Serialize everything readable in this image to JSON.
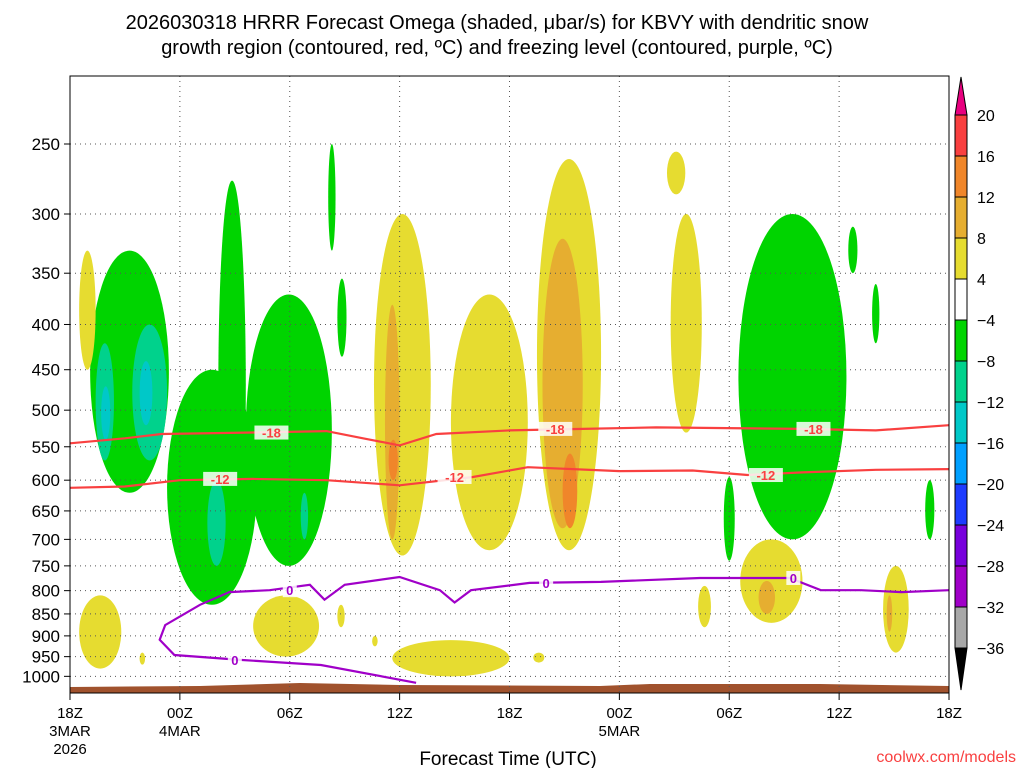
{
  "chart_data": {
    "type": "heatmap",
    "title_line1": "2026030318 HRRR Forecast Omega (shaded, μbar/s) for KBVY with dendritic snow",
    "title_line2": "growth region (contoured, red, ºC) and freezing level (contoured, purple, ºC)",
    "xlabel": "Forecast Time (UTC)",
    "ylabel": "",
    "credit": "coolwx.com/models",
    "xlim_hours": [
      0,
      48
    ],
    "ylim_hpa": [
      1042,
      209
    ],
    "yscale": "log",
    "grid": true,
    "x_ticks": [
      {
        "h": 0,
        "l1": "18Z",
        "l2": "3MAR",
        "l3": "2026"
      },
      {
        "h": 6,
        "l1": "00Z",
        "l2": "4MAR",
        "l3": ""
      },
      {
        "h": 12,
        "l1": "06Z",
        "l2": "",
        "l3": ""
      },
      {
        "h": 18,
        "l1": "12Z",
        "l2": "",
        "l3": ""
      },
      {
        "h": 24,
        "l1": "18Z",
        "l2": "",
        "l3": ""
      },
      {
        "h": 30,
        "l1": "00Z",
        "l2": "5MAR",
        "l3": ""
      },
      {
        "h": 36,
        "l1": "06Z",
        "l2": "",
        "l3": ""
      },
      {
        "h": 42,
        "l1": "12Z",
        "l2": "",
        "l3": ""
      },
      {
        "h": 48,
        "l1": "18Z",
        "l2": "",
        "l3": ""
      }
    ],
    "y_ticks": [
      "250",
      "300",
      "350",
      "400",
      "450",
      "500",
      "550",
      "600",
      "650",
      "700",
      "750",
      "800",
      "850",
      "900",
      "950",
      "1000"
    ],
    "colorbar": {
      "labels": [
        "20",
        "16",
        "12",
        "8",
        "4",
        "-4",
        "-8",
        "-12",
        "-16",
        "-20",
        "-24",
        "-28",
        "-32",
        "-36"
      ],
      "top_arrow_color": "#e8007f",
      "bottom_arrow_color": "#000000",
      "colors": [
        "#f94040",
        "#f0862a",
        "#e6ae30",
        "#e6dc30",
        "#ffffff",
        "#00d400",
        "#00d28c",
        "#00c8c8",
        "#00a0ff",
        "#1e3cff",
        "#7800dc",
        "#a000c8",
        "#a8a8a8"
      ]
    },
    "level_colors": {
      "-12": "#00c8c8",
      "-8": "#00d28c",
      "-4": "#00d400",
      "4": "#e6dc30",
      "8": "#e6ae30",
      "12": "#f0862a"
    },
    "shaded_regions": [
      {
        "level": "-4",
        "h": [
          1.1,
          5.4
        ],
        "p": [
          330,
          620
        ]
      },
      {
        "level": "-4",
        "h": [
          5.3,
          10.2
        ],
        "p": [
          450,
          830
        ]
      },
      {
        "level": "-4",
        "h": [
          8.1,
          9.6
        ],
        "p": [
          275,
          800
        ]
      },
      {
        "level": "-4",
        "h": [
          9.6,
          14.3
        ],
        "p": [
          370,
          750
        ]
      },
      {
        "level": "-4",
        "h": [
          14.1,
          14.5
        ],
        "p": [
          250,
          330
        ]
      },
      {
        "level": "-4",
        "h": [
          14.6,
          15.1
        ],
        "p": [
          355,
          435
        ]
      },
      {
        "level": "-4",
        "h": [
          36.5,
          42.4
        ],
        "p": [
          300,
          700
        ]
      },
      {
        "level": "-4",
        "h": [
          35.7,
          36.3
        ],
        "p": [
          595,
          740
        ]
      },
      {
        "level": "-4",
        "h": [
          42.5,
          43.0
        ],
        "p": [
          310,
          350
        ]
      },
      {
        "level": "-4",
        "h": [
          43.8,
          44.2
        ],
        "p": [
          360,
          420
        ]
      },
      {
        "level": "-4",
        "h": [
          46.7,
          47.2
        ],
        "p": [
          600,
          700
        ]
      },
      {
        "level": "-8",
        "h": [
          1.4,
          2.4
        ],
        "p": [
          420,
          570
        ]
      },
      {
        "level": "-8",
        "h": [
          3.4,
          5.3
        ],
        "p": [
          400,
          570
        ]
      },
      {
        "level": "-8",
        "h": [
          7.5,
          8.5
        ],
        "p": [
          600,
          750
        ]
      },
      {
        "level": "-8",
        "h": [
          12.6,
          13.0
        ],
        "p": [
          620,
          700
        ]
      },
      {
        "level": "-12",
        "h": [
          1.7,
          2.2
        ],
        "p": [
          470,
          540
        ]
      },
      {
        "level": "-12",
        "h": [
          3.8,
          4.5
        ],
        "p": [
          440,
          520
        ]
      },
      {
        "level": "4",
        "h": [
          0.5,
          1.4
        ],
        "p": [
          330,
          450
        ]
      },
      {
        "level": "4",
        "h": [
          0.5,
          2.8
        ],
        "p": [
          810,
          980
        ]
      },
      {
        "level": "4",
        "h": [
          3.8,
          4.1
        ],
        "p": [
          940,
          970
        ]
      },
      {
        "level": "4",
        "h": [
          10.0,
          13.6
        ],
        "p": [
          810,
          950
        ]
      },
      {
        "level": "4",
        "h": [
          14.6,
          15.0
        ],
        "p": [
          830,
          880
        ]
      },
      {
        "level": "4",
        "h": [
          16.5,
          16.8
        ],
        "p": [
          900,
          925
        ]
      },
      {
        "level": "4",
        "h": [
          16.6,
          19.7
        ],
        "p": [
          300,
          730
        ]
      },
      {
        "level": "4",
        "h": [
          20.8,
          25.0
        ],
        "p": [
          370,
          720
        ]
      },
      {
        "level": "4",
        "h": [
          17.6,
          24.0
        ],
        "p": [
          910,
          1000
        ]
      },
      {
        "level": "4",
        "h": [
          25.3,
          25.9
        ],
        "p": [
          940,
          965
        ]
      },
      {
        "level": "4",
        "h": [
          25.5,
          29.0
        ],
        "p": [
          260,
          720
        ]
      },
      {
        "level": "4",
        "h": [
          32.6,
          33.6
        ],
        "p": [
          255,
          285
        ]
      },
      {
        "level": "4",
        "h": [
          32.8,
          34.5
        ],
        "p": [
          300,
          530
        ]
      },
      {
        "level": "4",
        "h": [
          34.3,
          35.0
        ],
        "p": [
          790,
          880
        ]
      },
      {
        "level": "4",
        "h": [
          36.6,
          40.0
        ],
        "p": [
          700,
          870
        ]
      },
      {
        "level": "4",
        "h": [
          44.4,
          45.8
        ],
        "p": [
          750,
          940
        ]
      },
      {
        "level": "8",
        "h": [
          17.2,
          18.0
        ],
        "p": [
          380,
          700
        ]
      },
      {
        "level": "8",
        "h": [
          25.8,
          28.0
        ],
        "p": [
          320,
          680
        ]
      },
      {
        "level": "8",
        "h": [
          37.6,
          38.5
        ],
        "p": [
          780,
          850
        ]
      },
      {
        "level": "8",
        "h": [
          44.6,
          44.9
        ],
        "p": [
          810,
          890
        ]
      },
      {
        "level": "12",
        "h": [
          17.4,
          17.9
        ],
        "p": [
          540,
          600
        ]
      },
      {
        "level": "12",
        "h": [
          26.9,
          27.7
        ],
        "p": [
          560,
          680
        ]
      }
    ],
    "contours": [
      {
        "name": "-18",
        "color": "#f94040",
        "label": "-18",
        "label_h": [
          11,
          26.5,
          40.6
        ],
        "points": [
          [
            0,
            545
          ],
          [
            3,
            538
          ],
          [
            5,
            532
          ],
          [
            10,
            530
          ],
          [
            14,
            528
          ],
          [
            16,
            538
          ],
          [
            18,
            548
          ],
          [
            20,
            532
          ],
          [
            24,
            527
          ],
          [
            28,
            525
          ],
          [
            32,
            523
          ],
          [
            40,
            525
          ],
          [
            44,
            527
          ],
          [
            48,
            520
          ]
        ]
      },
      {
        "name": "-12",
        "color": "#f94040",
        "label": "-12",
        "label_h": [
          8.2,
          21,
          38
        ],
        "points": [
          [
            0,
            612
          ],
          [
            3,
            610
          ],
          [
            6,
            600
          ],
          [
            10,
            598
          ],
          [
            14,
            600
          ],
          [
            18,
            608
          ],
          [
            22,
            595
          ],
          [
            25,
            580
          ],
          [
            30,
            586
          ],
          [
            34,
            585
          ],
          [
            37,
            592
          ],
          [
            40,
            588
          ],
          [
            44,
            584
          ],
          [
            48,
            583
          ]
        ]
      },
      {
        "name": "0",
        "color": "#a000c8",
        "label": "0",
        "label_h": [
          12,
          26,
          39.5,
          9
        ],
        "points": [
          [
            18.9,
            1017
          ],
          [
            13.7,
            971
          ],
          [
            9.3,
            958
          ],
          [
            5.7,
            946
          ],
          [
            4.9,
            909
          ],
          [
            5.2,
            875
          ],
          [
            7.1,
            830
          ],
          [
            8.7,
            803
          ],
          [
            10.9,
            799
          ],
          [
            13.1,
            788
          ],
          [
            13.9,
            819
          ],
          [
            15,
            788
          ],
          [
            18,
            772
          ],
          [
            20.2,
            799
          ],
          [
            21,
            825
          ],
          [
            21.9,
            799
          ],
          [
            25.1,
            784
          ],
          [
            29,
            782
          ],
          [
            34.4,
            774
          ],
          [
            37.7,
            774
          ],
          [
            39.3,
            774
          ],
          [
            41,
            799
          ],
          [
            43.2,
            799
          ],
          [
            45.4,
            803
          ],
          [
            48,
            799
          ]
        ]
      }
    ],
    "terrain_color": "#a0522d"
  }
}
